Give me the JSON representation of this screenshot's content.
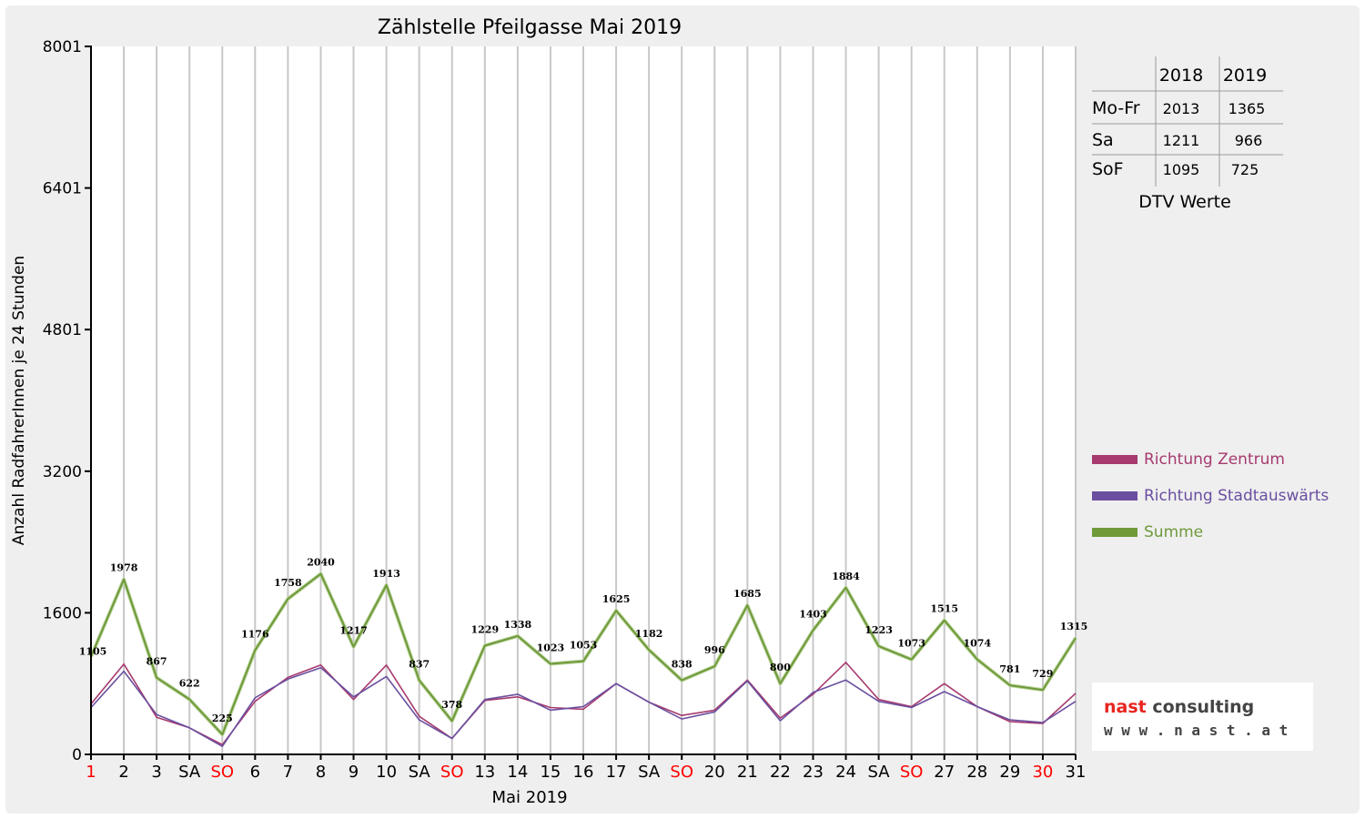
{
  "chart_data": {
    "type": "line",
    "title": "Zählstelle Pfeilgasse Mai 2019",
    "xlabel": "Mai 2019",
    "ylabel": "Anzahl RadfahrerInnen je 24 Stunden",
    "ylim": [
      0,
      8001
    ],
    "yticks": [
      "0",
      "1600",
      "3200",
      "4801",
      "6401",
      "8001"
    ],
    "yticks_values": [
      0,
      1600,
      3200,
      4801,
      6401,
      8001
    ],
    "grid": "vertical",
    "legend_position": "right",
    "categories": [
      "1",
      "2",
      "3",
      "SA",
      "SO",
      "6",
      "7",
      "8",
      "9",
      "10",
      "SA",
      "SO",
      "13",
      "14",
      "15",
      "16",
      "17",
      "SA",
      "SO",
      "20",
      "21",
      "22",
      "23",
      "24",
      "SA",
      "SO",
      "27",
      "28",
      "29",
      "30",
      "31"
    ],
    "category_colors": [
      "#ff0000",
      "#000000",
      "#000000",
      "#000000",
      "#ff0000",
      "#000000",
      "#000000",
      "#000000",
      "#000000",
      "#000000",
      "#000000",
      "#ff0000",
      "#000000",
      "#000000",
      "#000000",
      "#000000",
      "#000000",
      "#000000",
      "#ff0000",
      "#000000",
      "#000000",
      "#000000",
      "#000000",
      "#000000",
      "#000000",
      "#ff0000",
      "#000000",
      "#000000",
      "#000000",
      "#ff0000",
      "#000000"
    ],
    "series": [
      {
        "name": "Richtung Zentrum",
        "color": "#a63a6e",
        "values": [
          570,
          1020,
          420,
          300,
          110,
          600,
          870,
          1010,
          620,
          1010,
          430,
          180,
          610,
          650,
          530,
          510,
          800,
          590,
          440,
          500,
          840,
          410,
          680,
          1040,
          620,
          540,
          800,
          540,
          370,
          350,
          690
        ]
      },
      {
        "name": "Richtung Stadtauswärts",
        "color": "#6a4fa0",
        "values": [
          530,
          940,
          450,
          300,
          90,
          640,
          850,
          980,
          650,
          880,
          390,
          180,
          620,
          680,
          500,
          540,
          800,
          590,
          400,
          480,
          830,
          380,
          700,
          840,
          600,
          530,
          710,
          540,
          390,
          360,
          600
        ]
      },
      {
        "name": "Summe",
        "color": "#6f9a3a",
        "values": [
          1105,
          1978,
          867,
          622,
          225,
          1176,
          1758,
          2040,
          1217,
          1913,
          837,
          378,
          1229,
          1338,
          1023,
          1053,
          1625,
          1182,
          838,
          996,
          1685,
          800,
          1403,
          1884,
          1223,
          1073,
          1515,
          1074,
          781,
          729,
          1315
        ]
      }
    ],
    "data_labels": [
      "1105",
      "1978",
      "867",
      "622",
      "225",
      "1176",
      "1758",
      "2040",
      "1217",
      "1913",
      "837",
      "378",
      "1229",
      "1338",
      "1023",
      "1053",
      "1625",
      "1182",
      "838",
      "996",
      "1685",
      "800",
      "1403",
      "1884",
      "1223",
      "1073",
      "1515",
      "1074",
      "781",
      "729",
      "1315"
    ]
  },
  "dtv_table": {
    "headers": [
      "",
      "2018",
      "2019"
    ],
    "rows": [
      [
        "Mo-Fr",
        "2013",
        "1365"
      ],
      [
        "Sa",
        "1211",
        "966"
      ],
      [
        "SoF",
        "1095",
        "725"
      ]
    ],
    "caption": "DTV Werte"
  },
  "logo": {
    "line1": "nast consulting",
    "line2": "w w w . n a s t . a t",
    "accent_color": "#e8251f"
  },
  "colors": {
    "frame_background": "#efefef",
    "plot_background": "#ffffff",
    "grid": "#c8c8c8",
    "weekend_label": "#ff0000"
  }
}
